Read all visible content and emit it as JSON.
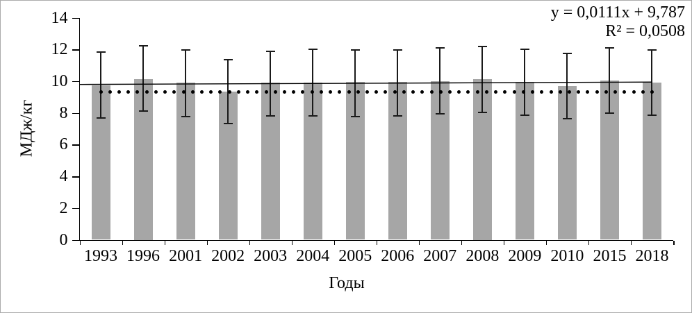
{
  "chart_data": {
    "type": "bar",
    "title": "",
    "categories": [
      "1993",
      "1996",
      "2001",
      "2002",
      "2003",
      "2004",
      "2005",
      "2006",
      "2007",
      "2008",
      "2009",
      "2010",
      "2015",
      "2018"
    ],
    "values": [
      9.75,
      10.15,
      9.9,
      9.35,
      9.9,
      9.9,
      9.95,
      9.95,
      10.0,
      10.15,
      9.95,
      9.7,
      10.05,
      9.9
    ],
    "error_high": [
      11.85,
      12.25,
      11.95,
      11.35,
      11.9,
      12.0,
      11.95,
      11.95,
      12.1,
      12.2,
      12.0,
      11.75,
      12.1,
      11.95
    ],
    "error_low": [
      7.7,
      8.1,
      7.75,
      7.35,
      7.8,
      7.8,
      7.75,
      7.8,
      7.95,
      8.05,
      7.85,
      7.65,
      8.0,
      7.85
    ],
    "xlabel": "Годы",
    "ylabel": "МДж/кг",
    "ylim": [
      0,
      14
    ],
    "yticks": [
      0,
      2,
      4,
      6,
      8,
      10,
      12,
      14
    ],
    "grid": false,
    "legend": "none",
    "bar_color": "#a6a6a6",
    "error_bar_color": "#1a1a1a",
    "trendline": {
      "slope": 0.0111,
      "intercept": 9.787,
      "equation_label": "y = 0,0111x + 9,787",
      "r2_label": "R² = 0,0508",
      "color": "#000000",
      "style": "solid"
    },
    "reference_line": {
      "value": 9.3,
      "style": "dotted",
      "color": "#000000"
    }
  }
}
